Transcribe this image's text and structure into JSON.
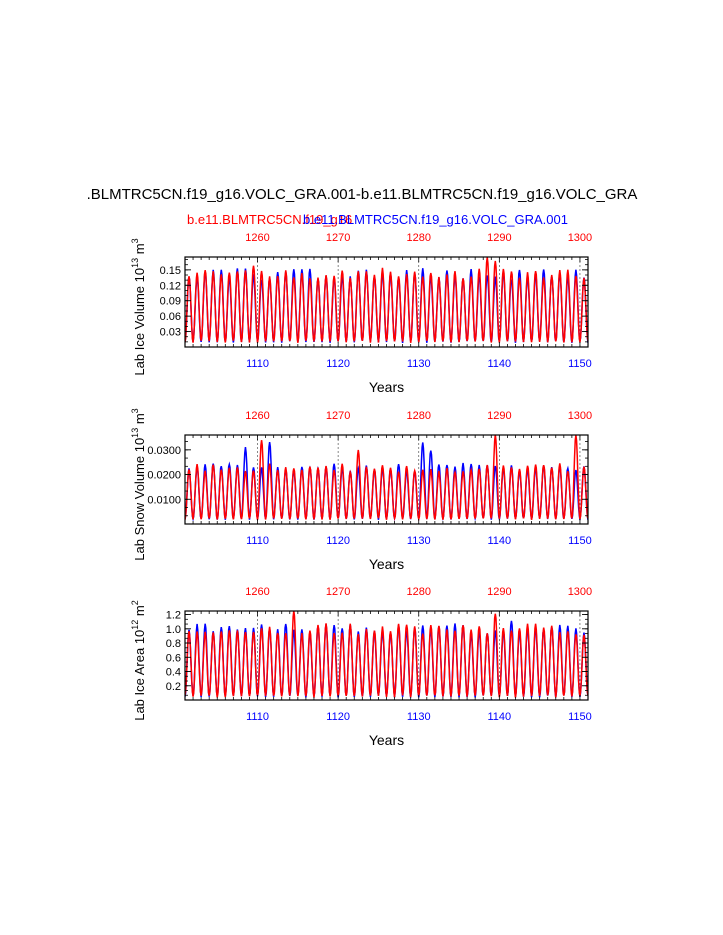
{
  "title": ".BLMTRC5CN.f19_g16.VOLC_GRA.001-b.e11.BLMTRC5CN.f19_g16.VOLC_GRA",
  "subtitle_left": "b.e11.BLMTRC5CN.f19_g16",
  "subtitle_right": "b.e11.BLMTRC5CN.f19_g16.VOLC_GRA.001",
  "colors": {
    "red_run": "#ff0000",
    "blue_run": "#0000ff",
    "axis": "#000000"
  },
  "chart_data": [
    {
      "type": "line",
      "ylabel": "Lab Ice Volume 10^13 m^3",
      "ylabel_main": "Lab Ice Volume 10",
      "ylabel_exp": "13",
      "ylabel_unit": "m",
      "ylabel_unit_exp": "3",
      "xlabel": "Years",
      "x_bottom_range": [
        1101,
        1151
      ],
      "x_top_range": [
        1251,
        1301
      ],
      "x_bottom_ticks": [
        "1110",
        "1120",
        "1130",
        "1140",
        "1150"
      ],
      "x_top_ticks": [
        "1260",
        "1270",
        "1280",
        "1290",
        "1300"
      ],
      "ylim": [
        0.0,
        0.175
      ],
      "y_ticks": [
        "0.03",
        "0.06",
        "0.09",
        "0.12",
        "0.15"
      ],
      "series": [
        {
          "name": "b.e11.BLMTRC5CN.f19_g16",
          "color": "#ff0000",
          "axis": "top",
          "cycle_min": 0.01,
          "cycle_max": 0.15,
          "spikes": {
            "1259": 0.16,
            "1288": 0.175,
            "1289": 0.168
          }
        },
        {
          "name": "b.e11.BLMTRC5CN.f19_g16.VOLC_GRA.001",
          "color": "#0000ff",
          "axis": "bottom",
          "cycle_min": 0.01,
          "cycle_max": 0.15,
          "spikes": {}
        }
      ]
    },
    {
      "type": "line",
      "ylabel": "Lab Snow Volume 10^13 m^3",
      "ylabel_main": "Lab Snow Volume 10",
      "ylabel_exp": "13",
      "ylabel_unit": "m",
      "ylabel_unit_exp": "3",
      "xlabel": "Years",
      "x_bottom_range": [
        1101,
        1151
      ],
      "x_top_range": [
        1251,
        1301
      ],
      "x_bottom_ticks": [
        "1110",
        "1120",
        "1130",
        "1140",
        "1150"
      ],
      "x_top_ticks": [
        "1260",
        "1270",
        "1280",
        "1290",
        "1300"
      ],
      "ylim": [
        0.0,
        0.036
      ],
      "y_ticks": [
        "0.0100",
        "0.0200",
        "0.0300"
      ],
      "series": [
        {
          "name": "b.e11.BLMTRC5CN.f19_g16",
          "color": "#ff0000",
          "axis": "top",
          "cycle_min": 0.002,
          "cycle_max": 0.024,
          "spikes": {
            "1260": 0.034,
            "1289": 0.036,
            "1299": 0.036,
            "1272": 0.03
          }
        },
        {
          "name": "b.e11.BLMTRC5CN.f19_g16.VOLC_GRA.001",
          "color": "#0000ff",
          "axis": "bottom",
          "cycle_min": 0.002,
          "cycle_max": 0.024,
          "spikes": {
            "1108": 0.031,
            "1111": 0.033,
            "1130": 0.033,
            "1131": 0.03
          }
        }
      ]
    },
    {
      "type": "line",
      "ylabel": "Lab Ice Area 10^12 m^2",
      "ylabel_main": "Lab Ice Area 10",
      "ylabel_exp": "12",
      "ylabel_unit": "m",
      "ylabel_unit_exp": "2",
      "xlabel": "Years",
      "x_bottom_range": [
        1101,
        1151
      ],
      "x_top_range": [
        1251,
        1301
      ],
      "x_bottom_ticks": [
        "1110",
        "1120",
        "1130",
        "1140",
        "1150"
      ],
      "x_top_ticks": [
        "1260",
        "1270",
        "1280",
        "1290",
        "1300"
      ],
      "ylim": [
        0.0,
        1.25
      ],
      "y_ticks": [
        "0.2",
        "0.4",
        "0.6",
        "0.8",
        "1.0",
        "1.2"
      ],
      "series": [
        {
          "name": "b.e11.BLMTRC5CN.f19_g16",
          "color": "#ff0000",
          "axis": "top",
          "cycle_min": 0.05,
          "cycle_max": 1.05,
          "spikes": {
            "1264": 1.25,
            "1289": 1.22
          }
        },
        {
          "name": "b.e11.BLMTRC5CN.f19_g16.VOLC_GRA.001",
          "color": "#0000ff",
          "axis": "bottom",
          "cycle_min": 0.05,
          "cycle_max": 1.05,
          "spikes": {
            "1141": 1.12
          }
        }
      ]
    }
  ]
}
